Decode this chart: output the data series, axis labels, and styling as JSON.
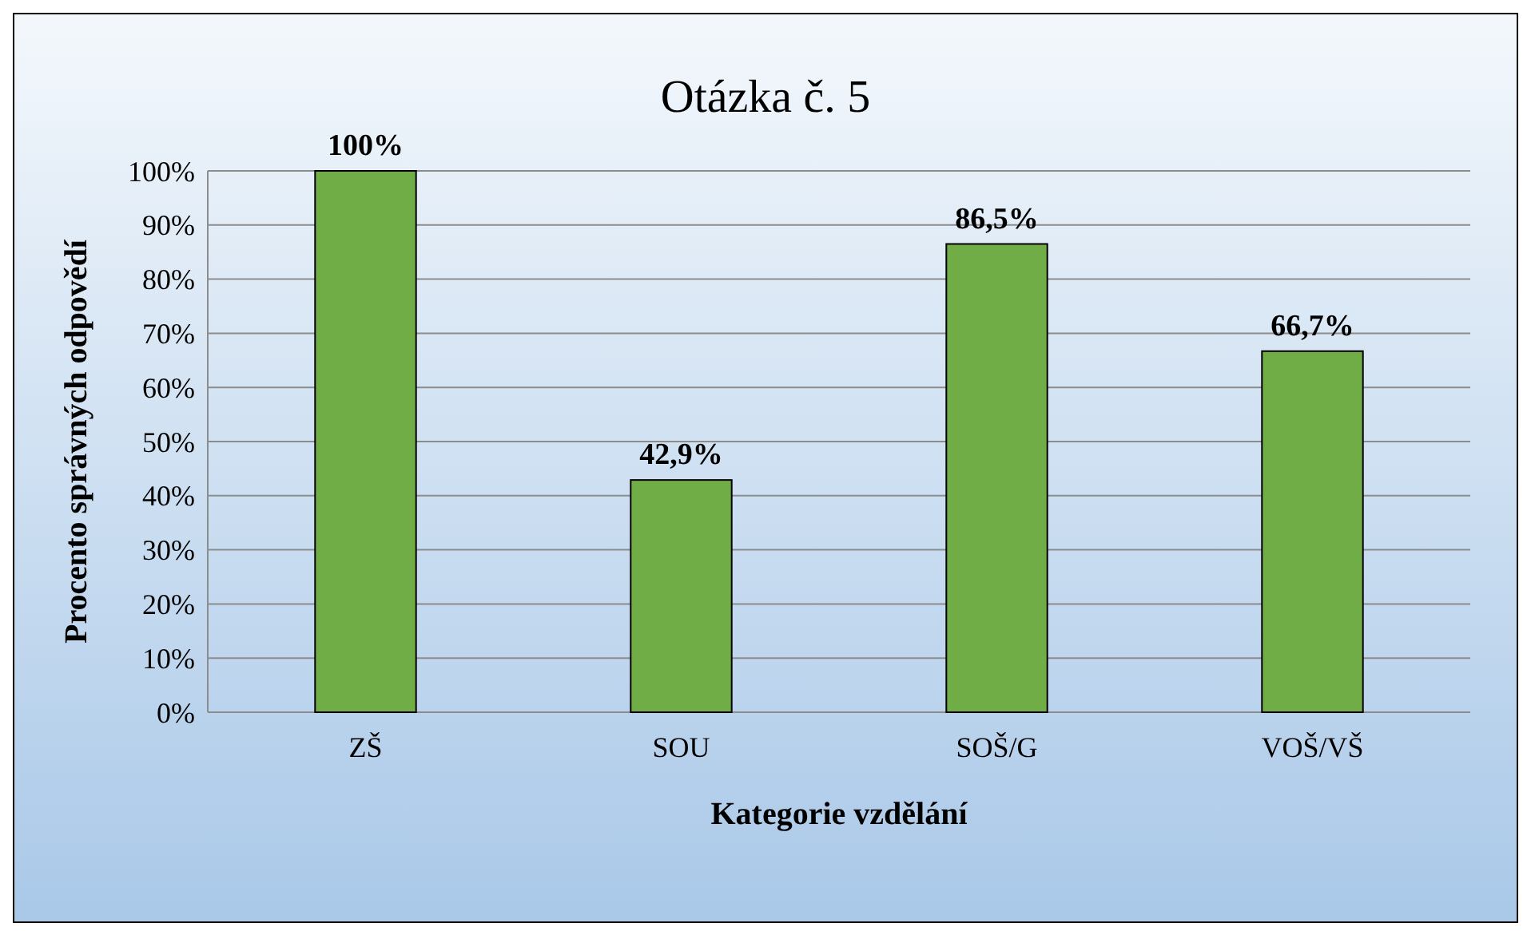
{
  "chart_data": {
    "type": "bar",
    "title": "Otázka č. 5",
    "xlabel": "Kategorie vzdělání",
    "ylabel": "Procento správných odpovědí",
    "categories": [
      "ZŠ",
      "SOU",
      "SOŠ/G",
      "VOŠ/VŠ"
    ],
    "values": [
      100,
      42.9,
      86.5,
      66.7
    ],
    "value_labels": [
      "100%",
      "42,9%",
      "86,5%",
      "66,7%"
    ],
    "color": "#70ad47",
    "ylim": [
      0,
      100
    ],
    "yticks": [
      {
        "value": 0,
        "label": "0%"
      },
      {
        "value": 10,
        "label": "10%"
      },
      {
        "value": 20,
        "label": "20%"
      },
      {
        "value": 30,
        "label": "30%"
      },
      {
        "value": 40,
        "label": "40%"
      },
      {
        "value": 50,
        "label": "50%"
      },
      {
        "value": 60,
        "label": "60%"
      },
      {
        "value": 70,
        "label": "70%"
      },
      {
        "value": 80,
        "label": "80%"
      },
      {
        "value": 90,
        "label": "90%"
      },
      {
        "value": 100,
        "label": "100%"
      }
    ],
    "grid": "y"
  }
}
